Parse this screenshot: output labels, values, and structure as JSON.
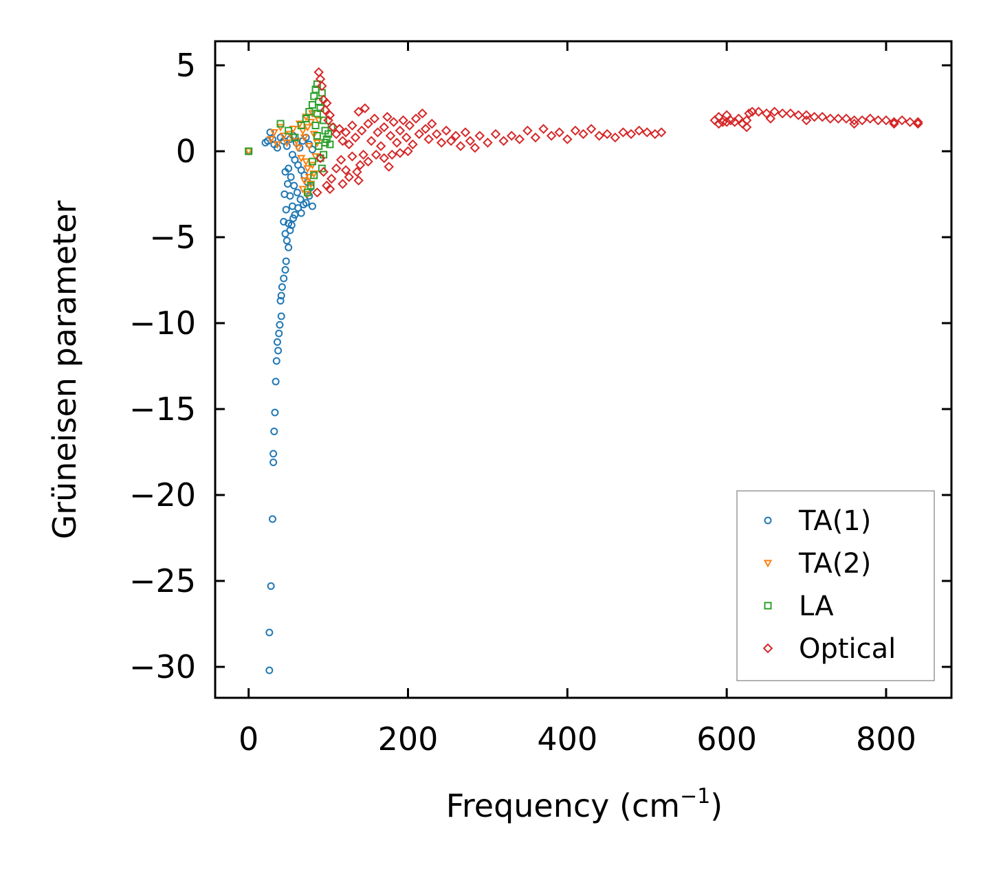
{
  "chart_data": {
    "type": "scatter",
    "title": "",
    "xlabel": "Frequency (cm",
    "xlabel_sup": "−1",
    "xlabel_close": ")",
    "ylabel": "Grüneisen parameter",
    "xlim": [
      -42,
      882
    ],
    "ylim": [
      -31.8,
      6.4
    ],
    "xticks": [
      0,
      200,
      400,
      600,
      800
    ],
    "xtick_labels": [
      "0",
      "200",
      "400",
      "600",
      "800"
    ],
    "yticks": [
      5,
      0,
      -5,
      -10,
      -15,
      -20,
      -25,
      -30
    ],
    "ytick_labels": [
      "5",
      "0",
      "−5",
      "−10",
      "−15",
      "−20",
      "−25",
      "−30"
    ],
    "legend_position": "lower-right",
    "grid": false,
    "series": [
      {
        "name": "TA(1)",
        "marker": "circle",
        "color": "#1f77b4",
        "points": [
          [
            0,
            0
          ],
          [
            21,
            0.5
          ],
          [
            24,
            0.6
          ],
          [
            27,
            1.1
          ],
          [
            30,
            0.7
          ],
          [
            32,
            0.4
          ],
          [
            36,
            0.2
          ],
          [
            40,
            0.8
          ],
          [
            44,
            0.6
          ],
          [
            48,
            0.3
          ],
          [
            52,
            0.7
          ],
          [
            56,
            0.9
          ],
          [
            60,
            0.5
          ],
          [
            64,
            0.2
          ],
          [
            68,
            0.6
          ],
          [
            72,
            0.8
          ],
          [
            76,
            0.4
          ],
          [
            80,
            0.1
          ],
          [
            55,
            -0.2
          ],
          [
            58,
            -0.5
          ],
          [
            62,
            -0.8
          ],
          [
            66,
            -1.1
          ],
          [
            70,
            -1.4
          ],
          [
            74,
            -1.8
          ],
          [
            78,
            -2.1
          ],
          [
            50,
            -1.0
          ],
          [
            53,
            -1.5
          ],
          [
            57,
            -2.0
          ],
          [
            61,
            -2.4
          ],
          [
            65,
            -2.8
          ],
          [
            69,
            -3.1
          ],
          [
            46,
            -1.2
          ],
          [
            49,
            -1.9
          ],
          [
            52,
            -2.6
          ],
          [
            55,
            -3.2
          ],
          [
            58,
            -3.7
          ],
          [
            62,
            -3.3
          ],
          [
            66,
            -3.6
          ],
          [
            72,
            -3.0
          ],
          [
            76,
            -2.6
          ],
          [
            80,
            -3.2
          ],
          [
            45,
            -2.5
          ],
          [
            47,
            -3.4
          ],
          [
            50,
            -4.2
          ],
          [
            52,
            -4.6
          ],
          [
            54,
            -4.3
          ],
          [
            56,
            -3.9
          ],
          [
            44,
            -4.1
          ],
          [
            46,
            -4.8
          ],
          [
            48,
            -5.2
          ],
          [
            50,
            -5.6
          ],
          [
            47,
            -6.4
          ],
          [
            46,
            -6.9
          ],
          [
            44,
            -7.4
          ],
          [
            42,
            -7.9
          ],
          [
            41,
            -8.4
          ],
          [
            40,
            -8.7
          ],
          [
            41,
            -9.6
          ],
          [
            39,
            -10.1
          ],
          [
            38,
            -10.6
          ],
          [
            36,
            -11.1
          ],
          [
            37,
            -11.6
          ],
          [
            35,
            -12.2
          ],
          [
            34,
            -13.4
          ],
          [
            33,
            -15.2
          ],
          [
            32,
            -16.3
          ],
          [
            31,
            -17.6
          ],
          [
            31,
            -18.1
          ],
          [
            30,
            -21.4
          ],
          [
            28,
            -25.3
          ],
          [
            26,
            -28.0
          ],
          [
            26,
            -30.2
          ]
        ]
      },
      {
        "name": "TA(2)",
        "marker": "triangle-down",
        "color": "#ff7f0e",
        "points": [
          [
            0,
            0
          ],
          [
            28,
            0.7
          ],
          [
            32,
            1.1
          ],
          [
            36,
            0.4
          ],
          [
            40,
            1.4
          ],
          [
            44,
            0.9
          ],
          [
            48,
            0.5
          ],
          [
            52,
            1.0
          ],
          [
            56,
            1.3
          ],
          [
            60,
            0.6
          ],
          [
            64,
            1.6
          ],
          [
            68,
            1.2
          ],
          [
            70,
            0.8
          ],
          [
            72,
            2.0
          ],
          [
            74,
            1.4
          ],
          [
            76,
            0.3
          ],
          [
            78,
            1.7
          ],
          [
            80,
            2.2
          ],
          [
            82,
            1.0
          ],
          [
            84,
            -0.3
          ],
          [
            72,
            -0.6
          ],
          [
            74,
            -1.0
          ],
          [
            76,
            -1.5
          ],
          [
            78,
            -1.9
          ],
          [
            80,
            -0.8
          ],
          [
            82,
            -1.3
          ],
          [
            70,
            -1.7
          ],
          [
            66,
            -0.4
          ],
          [
            86,
            0.5
          ],
          [
            88,
            1.8
          ],
          [
            68,
            -2.2
          ],
          [
            74,
            -2.5
          ],
          [
            62,
            0.2
          ]
        ]
      },
      {
        "name": "LA",
        "marker": "square",
        "color": "#2ca02c",
        "points": [
          [
            0,
            0
          ],
          [
            40,
            1.6
          ],
          [
            50,
            1.2
          ],
          [
            58,
            0.8
          ],
          [
            66,
            1.5
          ],
          [
            72,
            1.9
          ],
          [
            76,
            2.3
          ],
          [
            80,
            2.7
          ],
          [
            82,
            3.2
          ],
          [
            84,
            3.6
          ],
          [
            86,
            3.9
          ],
          [
            88,
            2.9
          ],
          [
            90,
            2.5
          ],
          [
            92,
            3.4
          ],
          [
            94,
            1.8
          ],
          [
            96,
            1.2
          ],
          [
            98,
            0.7
          ],
          [
            100,
            1.0
          ],
          [
            102,
            0.4
          ],
          [
            104,
            1.4
          ],
          [
            84,
            1.5
          ],
          [
            86,
            0.9
          ],
          [
            88,
            0.3
          ],
          [
            90,
            -0.4
          ],
          [
            92,
            -1.0
          ],
          [
            80,
            -0.6
          ],
          [
            82,
            -1.4
          ],
          [
            78,
            -2.0
          ],
          [
            94,
            -0.2
          ],
          [
            96,
            0.5
          ],
          [
            74,
            -2.4
          ],
          [
            86,
            2.2
          ]
        ]
      },
      {
        "name": "Optical",
        "marker": "diamond",
        "color": "#d62728",
        "points": [
          [
            88,
            4.6
          ],
          [
            90,
            4.2
          ],
          [
            92,
            3.8
          ],
          [
            94,
            3.0
          ],
          [
            96,
            2.4
          ],
          [
            98,
            2.8
          ],
          [
            100,
            1.8
          ],
          [
            102,
            2.1
          ],
          [
            106,
            1.4
          ],
          [
            110,
            1.0
          ],
          [
            114,
            1.3
          ],
          [
            118,
            0.6
          ],
          [
            122,
            1.1
          ],
          [
            126,
            0.4
          ],
          [
            130,
            1.5
          ],
          [
            134,
            0.8
          ],
          [
            138,
            2.3
          ],
          [
            142,
            1.2
          ],
          [
            146,
            2.5
          ],
          [
            150,
            1.6
          ],
          [
            154,
            0.6
          ],
          [
            158,
            1.9
          ],
          [
            162,
            1.1
          ],
          [
            166,
            0.3
          ],
          [
            170,
            1.4
          ],
          [
            174,
            2.0
          ],
          [
            178,
            0.9
          ],
          [
            182,
            1.7
          ],
          [
            186,
            0.5
          ],
          [
            190,
            1.2
          ],
          [
            194,
            1.8
          ],
          [
            198,
            0.8
          ],
          [
            202,
            1.5
          ],
          [
            206,
            0.4
          ],
          [
            210,
            1.9
          ],
          [
            214,
            1.0
          ],
          [
            218,
            2.2
          ],
          [
            222,
            1.3
          ],
          [
            226,
            0.7
          ],
          [
            230,
            1.6
          ],
          [
            236,
            1.0
          ],
          [
            242,
            0.5
          ],
          [
            248,
            1.2
          ],
          [
            254,
            0.6
          ],
          [
            260,
            0.9
          ],
          [
            266,
            0.3
          ],
          [
            272,
            1.1
          ],
          [
            278,
            0.6
          ],
          [
            284,
            0.2
          ],
          [
            290,
            0.9
          ],
          [
            300,
            0.5
          ],
          [
            310,
            1.0
          ],
          [
            320,
            0.6
          ],
          [
            330,
            0.9
          ],
          [
            340,
            0.7
          ],
          [
            350,
            1.2
          ],
          [
            360,
            0.8
          ],
          [
            370,
            1.3
          ],
          [
            380,
            0.9
          ],
          [
            390,
            1.1
          ],
          [
            400,
            0.7
          ],
          [
            410,
            1.2
          ],
          [
            420,
            1.0
          ],
          [
            430,
            1.3
          ],
          [
            440,
            0.9
          ],
          [
            450,
            1.0
          ],
          [
            460,
            0.8
          ],
          [
            470,
            1.1
          ],
          [
            480,
            1.0
          ],
          [
            490,
            1.2
          ],
          [
            500,
            1.1
          ],
          [
            510,
            1.0
          ],
          [
            518,
            1.1
          ],
          [
            90,
            -0.4
          ],
          [
            94,
            -1.2
          ],
          [
            98,
            -2.0
          ],
          [
            86,
            -2.4
          ],
          [
            104,
            -1.6
          ],
          [
            110,
            -1.0
          ],
          [
            116,
            -0.5
          ],
          [
            122,
            -1.1
          ],
          [
            130,
            -0.3
          ],
          [
            136,
            -1.2
          ],
          [
            140,
            -0.8
          ],
          [
            144,
            -0.2
          ],
          [
            150,
            -0.6
          ],
          [
            160,
            -0.2
          ],
          [
            170,
            -0.4
          ],
          [
            180,
            -0.2
          ],
          [
            190,
            -0.1
          ],
          [
            200,
            0.0
          ],
          [
            138,
            -1.7
          ],
          [
            126,
            -1.5
          ],
          [
            176,
            -0.9
          ],
          [
            118,
            -1.9
          ],
          [
            102,
            -2.2
          ],
          [
            585,
            1.8
          ],
          [
            590,
            2.0
          ],
          [
            595,
            1.7
          ],
          [
            600,
            2.1
          ],
          [
            605,
            1.8
          ],
          [
            610,
            1.7
          ],
          [
            615,
            1.9
          ],
          [
            620,
            1.6
          ],
          [
            625,
            1.8
          ],
          [
            628,
            2.2
          ],
          [
            632,
            2.3
          ],
          [
            640,
            2.3
          ],
          [
            650,
            2.2
          ],
          [
            660,
            2.3
          ],
          [
            670,
            2.2
          ],
          [
            680,
            2.2
          ],
          [
            690,
            2.1
          ],
          [
            700,
            2.1
          ],
          [
            710,
            2.0
          ],
          [
            720,
            2.0
          ],
          [
            730,
            1.9
          ],
          [
            740,
            1.9
          ],
          [
            750,
            1.9
          ],
          [
            760,
            1.8
          ],
          [
            770,
            1.8
          ],
          [
            780,
            1.9
          ],
          [
            790,
            1.8
          ],
          [
            800,
            1.8
          ],
          [
            810,
            1.7
          ],
          [
            820,
            1.8
          ],
          [
            830,
            1.7
          ],
          [
            840,
            1.7
          ],
          [
            655,
            1.9
          ],
          [
            700,
            1.8
          ],
          [
            760,
            1.6
          ],
          [
            810,
            1.6
          ],
          [
            840,
            1.6
          ],
          [
            590,
            1.6
          ],
          [
            600,
            1.7
          ],
          [
            625,
            1.4
          ]
        ]
      }
    ]
  }
}
